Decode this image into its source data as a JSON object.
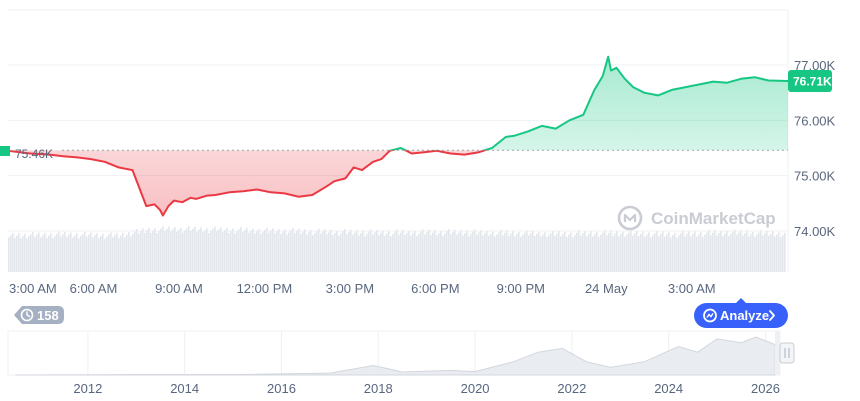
{
  "chart_data": [
    {
      "type": "area",
      "title": "",
      "xlabel": "",
      "ylabel": "",
      "ylim": [
        73500,
        77600
      ],
      "x_tick_labels": [
        "3:00 AM",
        "6:00 AM",
        "9:00 AM",
        "12:00 PM",
        "3:00 PM",
        "6:00 PM",
        "9:00 PM",
        "24 May",
        "3:00 AM"
      ],
      "y_ticks": [
        74000,
        75000,
        76000,
        77000
      ],
      "y_tick_labels": [
        "74.00K",
        "75.00K",
        "76.00K",
        "77.00K"
      ],
      "open_value": 75460,
      "open_label": "75.46K",
      "last_value": 76710,
      "last_label": "76.71K",
      "colors": {
        "above": "#16c784",
        "below": "#ea3943"
      },
      "grid": true,
      "watermark": "CoinMarketCap",
      "series": [
        {
          "hours": [
            0,
            0.8,
            1.5,
            2,
            2.5,
            3,
            3.5,
            4,
            4.5,
            5,
            5.3,
            5.5,
            5.6,
            5.8,
            6,
            6.3,
            6.6,
            6.8,
            7.2,
            7.5,
            8,
            8.5,
            9,
            9.5,
            10,
            10.5,
            11,
            11.5,
            11.8,
            12.2,
            12.5,
            12.8,
            13.2,
            13.5,
            13.8,
            14.2,
            14.6,
            15,
            15.5,
            16,
            16.5,
            17,
            17.5,
            18,
            18.3,
            18.8,
            19.3,
            19.8,
            20.3,
            20.8,
            21.2,
            21.5,
            21.7,
            21.8,
            22,
            22.3,
            22.6,
            23,
            23.5,
            24,
            24.5,
            25,
            25.5,
            26,
            26.5,
            27,
            27.5,
            28.2
          ],
          "values": [
            75450,
            75400,
            75380,
            75350,
            75330,
            75300,
            75250,
            75150,
            75100,
            74450,
            74480,
            74380,
            74280,
            74450,
            74550,
            74520,
            74600,
            74580,
            74640,
            74650,
            74700,
            74720,
            74750,
            74700,
            74680,
            74620,
            74650,
            74800,
            74900,
            74950,
            75150,
            75100,
            75250,
            75300,
            75450,
            75500,
            75400,
            75420,
            75450,
            75400,
            75380,
            75420,
            75500,
            75700,
            75720,
            75800,
            75900,
            75850,
            76000,
            76100,
            76550,
            76800,
            77150,
            76900,
            76950,
            76750,
            76600,
            76500,
            76450,
            76550,
            76600,
            76650,
            76700,
            76680,
            76750,
            76780,
            76720,
            76710
          ]
        }
      ],
      "volume": {
        "hours": [
          0,
          2,
          4,
          5,
          6,
          8,
          10,
          12,
          14,
          16,
          18,
          20,
          22,
          24,
          26,
          28.2
        ],
        "values": [
          0.6,
          0.62,
          0.6,
          0.7,
          0.72,
          0.7,
          0.68,
          0.66,
          0.65,
          0.66,
          0.64,
          0.63,
          0.64,
          0.62,
          0.65,
          0.63
        ]
      }
    },
    {
      "type": "area",
      "title": "",
      "x_tick_labels": [
        "2012",
        "2014",
        "2016",
        "2018",
        "2020",
        "2022",
        "2024",
        "2026"
      ],
      "x_ticks": [
        2012,
        2014,
        2016,
        2018,
        2020,
        2022,
        2024,
        2026
      ],
      "series": [
        {
          "x": [
            2010.5,
            2013,
            2015,
            2017,
            2017.9,
            2018.5,
            2019.5,
            2020,
            2020.8,
            2021.3,
            2021.8,
            2022.3,
            2022.8,
            2023.5,
            2024.2,
            2024.6,
            2025,
            2025.5,
            2025.8,
            2026.2
          ],
          "values": [
            0,
            0.01,
            0.01,
            0.05,
            0.25,
            0.08,
            0.12,
            0.09,
            0.35,
            0.6,
            0.7,
            0.35,
            0.2,
            0.35,
            0.75,
            0.6,
            0.95,
            0.85,
            1.0,
            0.8
          ]
        }
      ]
    }
  ],
  "ui": {
    "history_count": "158",
    "analyze_label": "Analyze",
    "icons": [
      "history-icon",
      "analyze-icon",
      "chevron-right-icon",
      "coinmarketcap-logo-icon",
      "scroll-handle-icon"
    ]
  }
}
